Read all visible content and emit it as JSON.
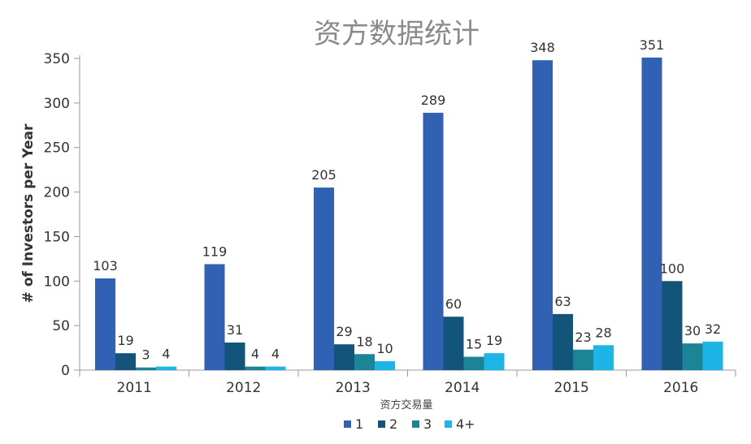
{
  "chart_data": {
    "type": "bar",
    "title": "资方数据统计",
    "xlabel": "资方交易量",
    "ylabel": "# of Investors per Year",
    "categories": [
      "2011",
      "2012",
      "2013",
      "2014",
      "2015",
      "2016"
    ],
    "series": [
      {
        "name": "1",
        "values": [
          103,
          119,
          205,
          289,
          348,
          351
        ],
        "color": "#3161b3"
      },
      {
        "name": "2",
        "values": [
          19,
          31,
          29,
          60,
          63,
          100
        ],
        "color": "#13547a"
      },
      {
        "name": "3",
        "values": [
          3,
          4,
          18,
          15,
          23,
          30
        ],
        "color": "#1b8496"
      },
      {
        "name": "4+",
        "values": [
          4,
          4,
          10,
          19,
          28,
          32
        ],
        "color": "#1db4e6"
      }
    ],
    "ylim": [
      0,
      350
    ],
    "yticks": [
      0,
      50,
      100,
      150,
      200,
      250,
      300,
      350
    ],
    "grid": false,
    "legend_position": "bottom-center"
  }
}
